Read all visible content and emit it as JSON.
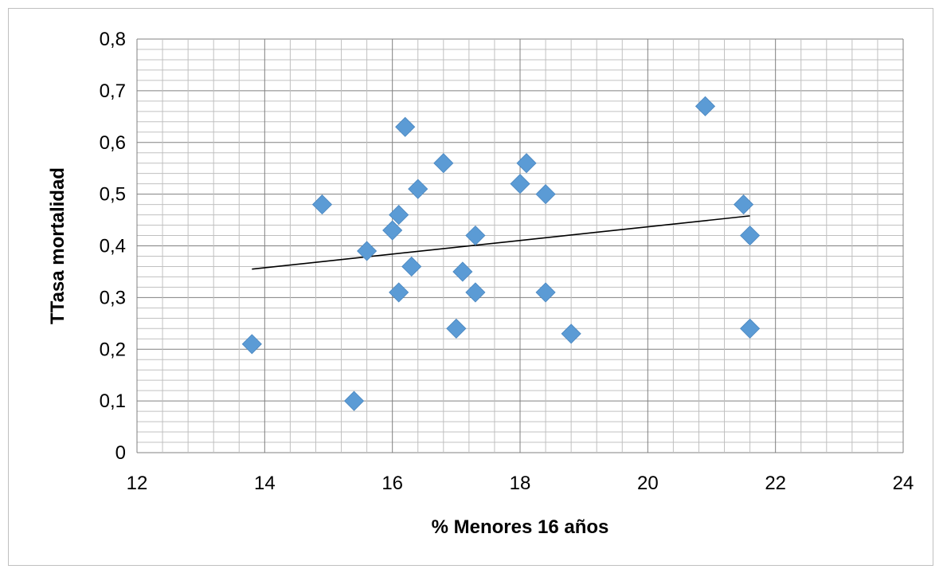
{
  "chart_data": {
    "type": "scatter",
    "title": "",
    "xlabel": "% Menores 16 años",
    "ylabel": "TTasa mortalidad",
    "xlim": [
      12,
      24
    ],
    "ylim": [
      0,
      0.8
    ],
    "x_ticks": [
      "12",
      "14",
      "16",
      "18",
      "20",
      "22",
      "24"
    ],
    "y_ticks": [
      "0",
      "0,1",
      "0,2",
      "0,3",
      "0,4",
      "0,5",
      "0,6",
      "0,7",
      "0,8"
    ],
    "x_tick_values": [
      12,
      14,
      16,
      18,
      20,
      22,
      24
    ],
    "y_tick_values": [
      0,
      0.1,
      0.2,
      0.3,
      0.4,
      0.5,
      0.6,
      0.7,
      0.8
    ],
    "grid": true,
    "legend": "none",
    "marker": "diamond",
    "marker_color": "#5b9bd5",
    "trendline": {
      "type": "linear",
      "x": [
        13.8,
        21.6
      ],
      "y": [
        0.355,
        0.458
      ],
      "color": "#000000"
    },
    "points": [
      {
        "x": 13.8,
        "y": 0.21
      },
      {
        "x": 14.9,
        "y": 0.48
      },
      {
        "x": 15.4,
        "y": 0.1
      },
      {
        "x": 15.6,
        "y": 0.39
      },
      {
        "x": 16.0,
        "y": 0.43
      },
      {
        "x": 16.1,
        "y": 0.46
      },
      {
        "x": 16.1,
        "y": 0.31
      },
      {
        "x": 16.2,
        "y": 0.63
      },
      {
        "x": 16.3,
        "y": 0.36
      },
      {
        "x": 16.4,
        "y": 0.51
      },
      {
        "x": 16.8,
        "y": 0.56
      },
      {
        "x": 17.0,
        "y": 0.24
      },
      {
        "x": 17.1,
        "y": 0.35
      },
      {
        "x": 17.3,
        "y": 0.42
      },
      {
        "x": 17.3,
        "y": 0.31
      },
      {
        "x": 18.0,
        "y": 0.52
      },
      {
        "x": 18.1,
        "y": 0.56
      },
      {
        "x": 18.4,
        "y": 0.5
      },
      {
        "x": 18.4,
        "y": 0.31
      },
      {
        "x": 18.8,
        "y": 0.23
      },
      {
        "x": 20.9,
        "y": 0.67
      },
      {
        "x": 21.5,
        "y": 0.48
      },
      {
        "x": 21.6,
        "y": 0.42
      },
      {
        "x": 21.6,
        "y": 0.24
      }
    ]
  }
}
